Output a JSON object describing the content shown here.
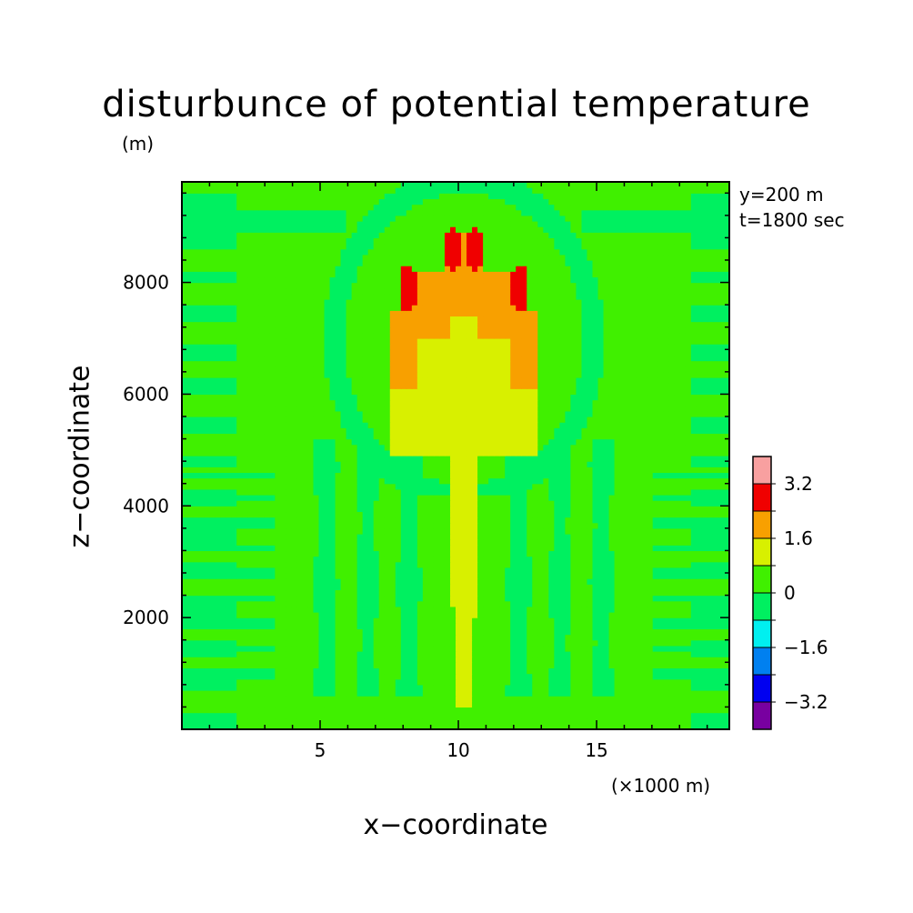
{
  "chart_data": {
    "type": "heatmap",
    "title": "disturbunce of potential temperature",
    "xlabel": "x−coordinate",
    "ylabel": "z−coordinate",
    "x_unit": "(×1000 m)",
    "y_unit": "(m)",
    "xlim": [
      0,
      19.8
    ],
    "ylim": [
      0,
      9800
    ],
    "x_ticks": [
      5,
      10,
      15
    ],
    "x_tick_labels": [
      "5",
      "10",
      "15"
    ],
    "y_ticks": [
      2000,
      4000,
      6000,
      8000
    ],
    "y_tick_labels": [
      "2000",
      "4000",
      "6000",
      "8000"
    ],
    "annotations": [
      "y=200 m",
      "t=1800 sec"
    ],
    "colorbar": {
      "levels": [
        -4.0,
        -3.2,
        -2.4,
        -1.6,
        -0.8,
        0,
        0.8,
        1.6,
        2.4,
        3.2,
        4.0
      ],
      "colors": [
        "#7800a0",
        "#0000f0",
        "#0080f0",
        "#00f0f0",
        "#00f060",
        "#40f000",
        "#d8f000",
        "#f8a000",
        "#f00000",
        "#f8a0a0"
      ],
      "labels": [
        "3.2",
        "1.6",
        "0",
        "−1.6",
        "−3.2"
      ],
      "label_values": [
        3.2,
        1.6,
        0,
        -1.6,
        -3.2
      ]
    },
    "field": {
      "description_values": "cell values on a 100 x 98 grid computed by the script; regions listed as value levels",
      "background": 0.4,
      "plume_stem": {
        "x_center": 10.2,
        "z_range": [
          400,
          4800
        ],
        "value": 1.2
      },
      "plume_head": {
        "x_range": [
          7.6,
          12.8
        ],
        "z_range": [
          4800,
          8800
        ],
        "value": 1.2
      },
      "warm_rim": {
        "value": 2.0
      },
      "hot_cores": [
        {
          "x": 8.2,
          "z": 7900,
          "value": 2.8
        },
        {
          "x": 12.2,
          "z": 7900,
          "value": 2.8
        },
        {
          "x": 9.8,
          "z": 8600,
          "value": 2.8
        },
        {
          "x": 10.6,
          "z": 8600,
          "value": 2.8
        }
      ],
      "cool_rings": {
        "value": -0.4
      }
    }
  }
}
